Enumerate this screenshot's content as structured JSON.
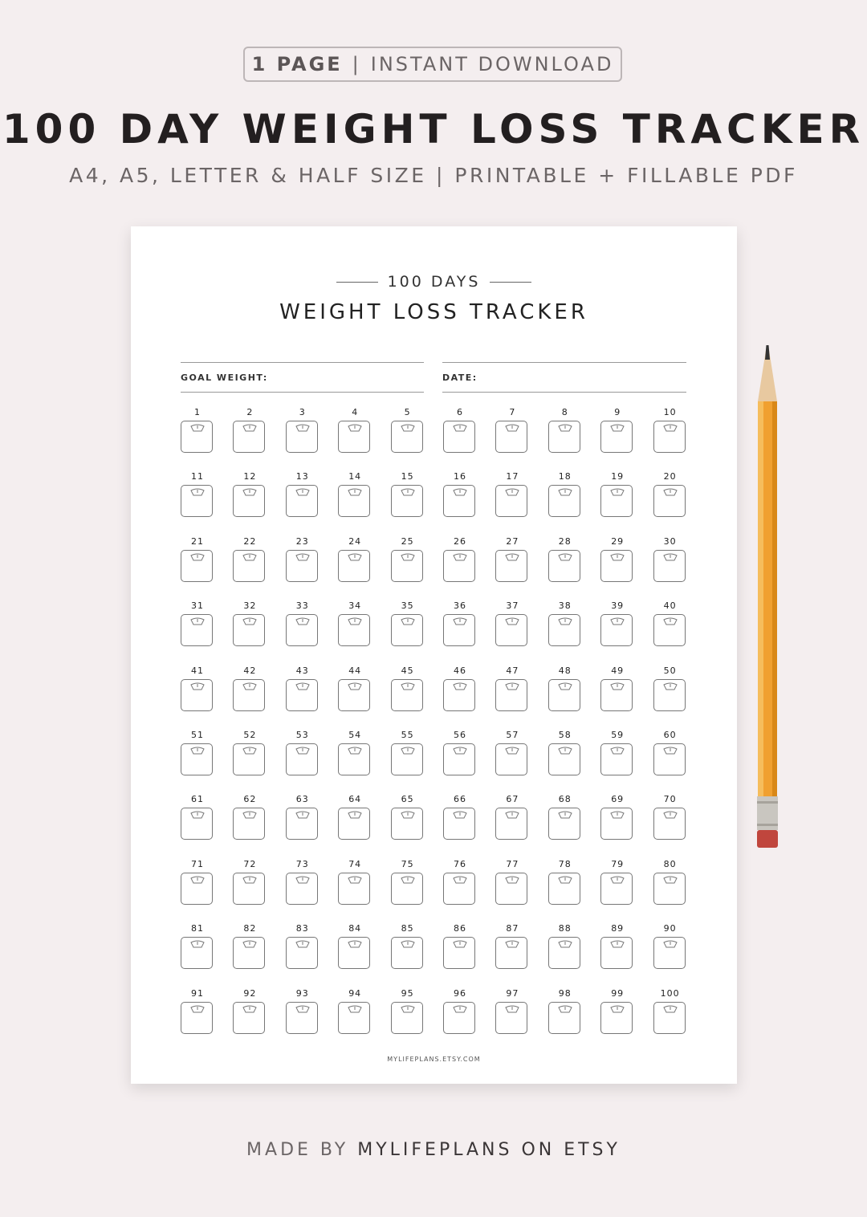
{
  "header": {
    "badge_bold": "1 PAGE",
    "badge_sep": "|",
    "badge_rest": "INSTANT DOWNLOAD",
    "title": "100 DAY WEIGHT LOSS TRACKER",
    "subtitle": "A4, A5, LETTER & HALF SIZE | PRINTABLE + FILLABLE PDF"
  },
  "page": {
    "kicker": "100 DAYS",
    "title": "WEIGHT LOSS TRACKER",
    "goal_label": "GOAL WEIGHT:",
    "date_label": "DATE:",
    "footer": "MYLIFEPLANS.ETSY.COM",
    "days": [
      "1",
      "2",
      "3",
      "4",
      "5",
      "6",
      "7",
      "8",
      "9",
      "10",
      "11",
      "12",
      "13",
      "14",
      "15",
      "16",
      "17",
      "18",
      "19",
      "20",
      "21",
      "22",
      "23",
      "24",
      "25",
      "26",
      "27",
      "28",
      "29",
      "30",
      "31",
      "32",
      "33",
      "34",
      "35",
      "36",
      "37",
      "38",
      "39",
      "40",
      "41",
      "42",
      "43",
      "44",
      "45",
      "46",
      "47",
      "48",
      "49",
      "50",
      "51",
      "52",
      "53",
      "54",
      "55",
      "56",
      "57",
      "58",
      "59",
      "60",
      "61",
      "62",
      "63",
      "64",
      "65",
      "66",
      "67",
      "68",
      "69",
      "70",
      "71",
      "72",
      "73",
      "74",
      "75",
      "76",
      "77",
      "78",
      "79",
      "80",
      "81",
      "82",
      "83",
      "84",
      "85",
      "86",
      "87",
      "88",
      "89",
      "90",
      "91",
      "92",
      "93",
      "94",
      "95",
      "96",
      "97",
      "98",
      "99",
      "100"
    ],
    "cell_icon": "bathroom-scale-icon"
  },
  "footer": {
    "prefix": "MADE BY",
    "brand": "MYLIFEPLANS ON ETSY"
  },
  "colors": {
    "background": "#f4eeef",
    "pencil": "#f0a030",
    "eraser": "#c0463d"
  }
}
